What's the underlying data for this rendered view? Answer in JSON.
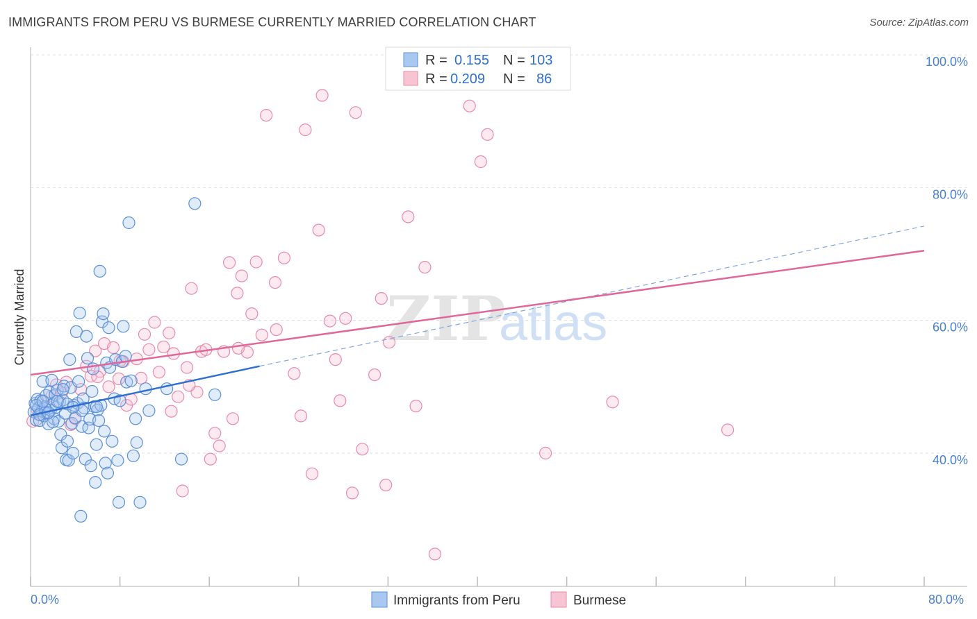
{
  "title": "IMMIGRANTS FROM PERU VS BURMESE CURRENTLY MARRIED CORRELATION CHART",
  "source": "Source: ZipAtlas.com",
  "watermark": {
    "zip": "ZIP",
    "atlas": "atlas"
  },
  "colors": {
    "peru_fill": "#a9c8f0",
    "peru_stroke": "#5b8fd6",
    "peru_line": "#2f6fcf",
    "burmese_fill": "#f7c4d3",
    "burmese_stroke": "#e88aa9",
    "burmese_line": "#e0679a",
    "tick_text": "#4a7fd0",
    "grid": "#dddddd"
  },
  "stats_legend": [
    {
      "r_label": "R =",
      "r_value": "0.155",
      "n_label": "N =",
      "n_value": "103",
      "series": "peru"
    },
    {
      "r_label": "R =",
      "r_value": "0.209",
      "n_label": "N =",
      "n_value": "86",
      "series": "burmese"
    }
  ],
  "chart_data": {
    "type": "scatter",
    "title": "IMMIGRANTS FROM PERU VS BURMESE CURRENTLY MARRIED CORRELATION CHART",
    "xlabel": "",
    "ylabel": "Currently Married",
    "xlim": [
      0,
      80
    ],
    "ylim": [
      20,
      100
    ],
    "x_tick_labels": [
      "0.0%",
      "80.0%"
    ],
    "y_ticks": [
      40,
      60,
      80,
      100
    ],
    "y_tick_labels": [
      "40.0%",
      "60.0%",
      "80.0%",
      "100.0%"
    ],
    "grid": true,
    "legend": [
      "Immigrants from Peru",
      "Burmese"
    ],
    "series": [
      {
        "name": "Immigrants from Peru",
        "color": "#5b8fd6",
        "trend": {
          "x": [
            0,
            20.5
          ],
          "y": [
            45.7,
            53.1
          ],
          "dashed_to": {
            "x": 80,
            "y": 74.2
          }
        },
        "points": [
          [
            0.3,
            46.2
          ],
          [
            0.4,
            47.5
          ],
          [
            0.5,
            45.0
          ],
          [
            0.6,
            48.1
          ],
          [
            0.7,
            46.8
          ],
          [
            0.8,
            44.9
          ],
          [
            0.9,
            47.9
          ],
          [
            1.0,
            46.3
          ],
          [
            1.1,
            50.8
          ],
          [
            1.2,
            45.6
          ],
          [
            1.3,
            47.0
          ],
          [
            1.4,
            48.7
          ],
          [
            1.5,
            46.0
          ],
          [
            1.6,
            44.4
          ],
          [
            1.7,
            49.2
          ],
          [
            1.8,
            46.5
          ],
          [
            1.9,
            51.0
          ],
          [
            2.0,
            47.4
          ],
          [
            2.1,
            45.2
          ],
          [
            2.2,
            48.8
          ],
          [
            2.3,
            46.9
          ],
          [
            2.4,
            49.5
          ],
          [
            2.5,
            44.8
          ],
          [
            2.6,
            47.7
          ],
          [
            2.7,
            42.8
          ],
          [
            2.8,
            40.8
          ],
          [
            2.9,
            48.0
          ],
          [
            3.0,
            50.1
          ],
          [
            3.1,
            46.0
          ],
          [
            3.2,
            39.0
          ],
          [
            3.3,
            41.8
          ],
          [
            3.4,
            38.9
          ],
          [
            3.5,
            54.1
          ],
          [
            3.6,
            49.9
          ],
          [
            3.7,
            44.5
          ],
          [
            3.8,
            40.0
          ],
          [
            3.9,
            47.2
          ],
          [
            4.0,
            45.3
          ],
          [
            4.1,
            58.3
          ],
          [
            4.2,
            47.5
          ],
          [
            4.3,
            50.8
          ],
          [
            4.4,
            61.1
          ],
          [
            4.5,
            30.5
          ],
          [
            4.6,
            44.0
          ],
          [
            4.7,
            48.2
          ],
          [
            4.8,
            46.8
          ],
          [
            4.9,
            39.1
          ],
          [
            5.0,
            57.6
          ],
          [
            5.1,
            54.3
          ],
          [
            5.2,
            43.8
          ],
          [
            5.3,
            45.1
          ],
          [
            5.4,
            38.1
          ],
          [
            5.5,
            49.3
          ],
          [
            5.6,
            52.7
          ],
          [
            5.7,
            47.0
          ],
          [
            5.8,
            35.6
          ],
          [
            5.9,
            41.3
          ],
          [
            6.0,
            46.5
          ],
          [
            6.1,
            44.9
          ],
          [
            6.2,
            67.4
          ],
          [
            6.3,
            47.2
          ],
          [
            6.4,
            59.8
          ],
          [
            6.5,
            61.0
          ],
          [
            6.6,
            43.3
          ],
          [
            6.7,
            38.5
          ],
          [
            6.8,
            53.6
          ],
          [
            6.9,
            37.0
          ],
          [
            7.0,
            58.9
          ],
          [
            7.1,
            52.9
          ],
          [
            7.3,
            41.8
          ],
          [
            7.5,
            48.2
          ],
          [
            7.6,
            54.1
          ],
          [
            7.8,
            38.9
          ],
          [
            7.9,
            32.6
          ],
          [
            8.0,
            47.9
          ],
          [
            8.2,
            53.8
          ],
          [
            8.3,
            59.1
          ],
          [
            8.5,
            54.6
          ],
          [
            8.6,
            50.7
          ],
          [
            8.8,
            74.7
          ],
          [
            9.0,
            50.9
          ],
          [
            9.2,
            39.6
          ],
          [
            9.4,
            45.2
          ],
          [
            9.5,
            41.6
          ],
          [
            9.8,
            32.6
          ],
          [
            10.3,
            49.7
          ],
          [
            10.6,
            46.4
          ],
          [
            12.2,
            49.7
          ],
          [
            13.5,
            39.1
          ],
          [
            14.7,
            77.6
          ],
          [
            16.5,
            48.8
          ],
          [
            1.3,
            46.7
          ],
          [
            2.0,
            44.7
          ],
          [
            3.3,
            47.4
          ],
          [
            4.6,
            46.4
          ],
          [
            5.9,
            47.0
          ],
          [
            0.5,
            47.2
          ],
          [
            0.8,
            45.8
          ],
          [
            1.1,
            47.8
          ],
          [
            1.6,
            46.1
          ],
          [
            2.4,
            47.8
          ],
          [
            2.9,
            49.6
          ],
          [
            3.8,
            46.9
          ]
        ]
      },
      {
        "name": "Burmese",
        "color": "#e88aa9",
        "trend": {
          "x": [
            0,
            80
          ],
          "y": [
            51.8,
            70.5
          ]
        },
        "points": [
          [
            0.2,
            44.8
          ],
          [
            0.6,
            46.5
          ],
          [
            1.1,
            47.9
          ],
          [
            1.5,
            45.9
          ],
          [
            1.9,
            48.6
          ],
          [
            2.3,
            50.3
          ],
          [
            2.8,
            49.1
          ],
          [
            3.2,
            50.7
          ],
          [
            3.6,
            44.3
          ],
          [
            4.0,
            45.2
          ],
          [
            4.5,
            49.6
          ],
          [
            5.0,
            53.1
          ],
          [
            5.4,
            51.6
          ],
          [
            5.8,
            55.4
          ],
          [
            6.2,
            52.3
          ],
          [
            6.6,
            56.5
          ],
          [
            7.0,
            50.0
          ],
          [
            7.4,
            55.9
          ],
          [
            7.9,
            51.2
          ],
          [
            8.3,
            53.8
          ],
          [
            8.6,
            47.2
          ],
          [
            9.0,
            48.1
          ],
          [
            9.5,
            54.2
          ],
          [
            9.9,
            51.3
          ],
          [
            10.2,
            57.9
          ],
          [
            10.6,
            55.6
          ],
          [
            11.1,
            59.7
          ],
          [
            11.5,
            52.2
          ],
          [
            11.9,
            56.0
          ],
          [
            12.4,
            58.1
          ],
          [
            12.8,
            55.0
          ],
          [
            13.2,
            48.5
          ],
          [
            13.6,
            34.3
          ],
          [
            14.0,
            52.9
          ],
          [
            14.4,
            64.8
          ],
          [
            14.9,
            49.2
          ],
          [
            15.3,
            55.3
          ],
          [
            15.7,
            55.6
          ],
          [
            16.1,
            39.1
          ],
          [
            16.5,
            43.0
          ],
          [
            16.9,
            41.1
          ],
          [
            17.3,
            55.3
          ],
          [
            17.8,
            68.7
          ],
          [
            18.1,
            45.2
          ],
          [
            18.5,
            64.1
          ],
          [
            18.9,
            66.7
          ],
          [
            19.4,
            55.2
          ],
          [
            19.8,
            61.0
          ],
          [
            20.2,
            68.8
          ],
          [
            20.7,
            57.8
          ],
          [
            21.1,
            90.9
          ],
          [
            21.9,
            65.7
          ],
          [
            22.7,
            69.4
          ],
          [
            23.6,
            52.0
          ],
          [
            24.2,
            45.6
          ],
          [
            24.6,
            88.7
          ],
          [
            25.2,
            36.9
          ],
          [
            25.8,
            73.6
          ],
          [
            26.1,
            93.9
          ],
          [
            26.8,
            59.9
          ],
          [
            27.3,
            54.1
          ],
          [
            27.7,
            47.9
          ],
          [
            28.2,
            60.3
          ],
          [
            28.8,
            34.0
          ],
          [
            29.1,
            91.3
          ],
          [
            29.7,
            40.6
          ],
          [
            30.8,
            51.8
          ],
          [
            31.4,
            63.3
          ],
          [
            31.8,
            35.2
          ],
          [
            32.1,
            56.7
          ],
          [
            33.8,
            75.6
          ],
          [
            34.5,
            47.1
          ],
          [
            35.3,
            68.0
          ],
          [
            36.2,
            24.8
          ],
          [
            39.3,
            92.3
          ],
          [
            40.3,
            83.9
          ],
          [
            40.9,
            88.0
          ],
          [
            46.1,
            40.0
          ],
          [
            52.1,
            47.7
          ],
          [
            62.4,
            43.5
          ],
          [
            12.6,
            46.3
          ],
          [
            14.2,
            50.2
          ],
          [
            18.6,
            55.8
          ],
          [
            22.0,
            58.6
          ],
          [
            8.0,
            53.9
          ],
          [
            6.0,
            51.5
          ]
        ]
      }
    ]
  },
  "bottom_legend": [
    "Immigrants from Peru",
    "Burmese"
  ]
}
